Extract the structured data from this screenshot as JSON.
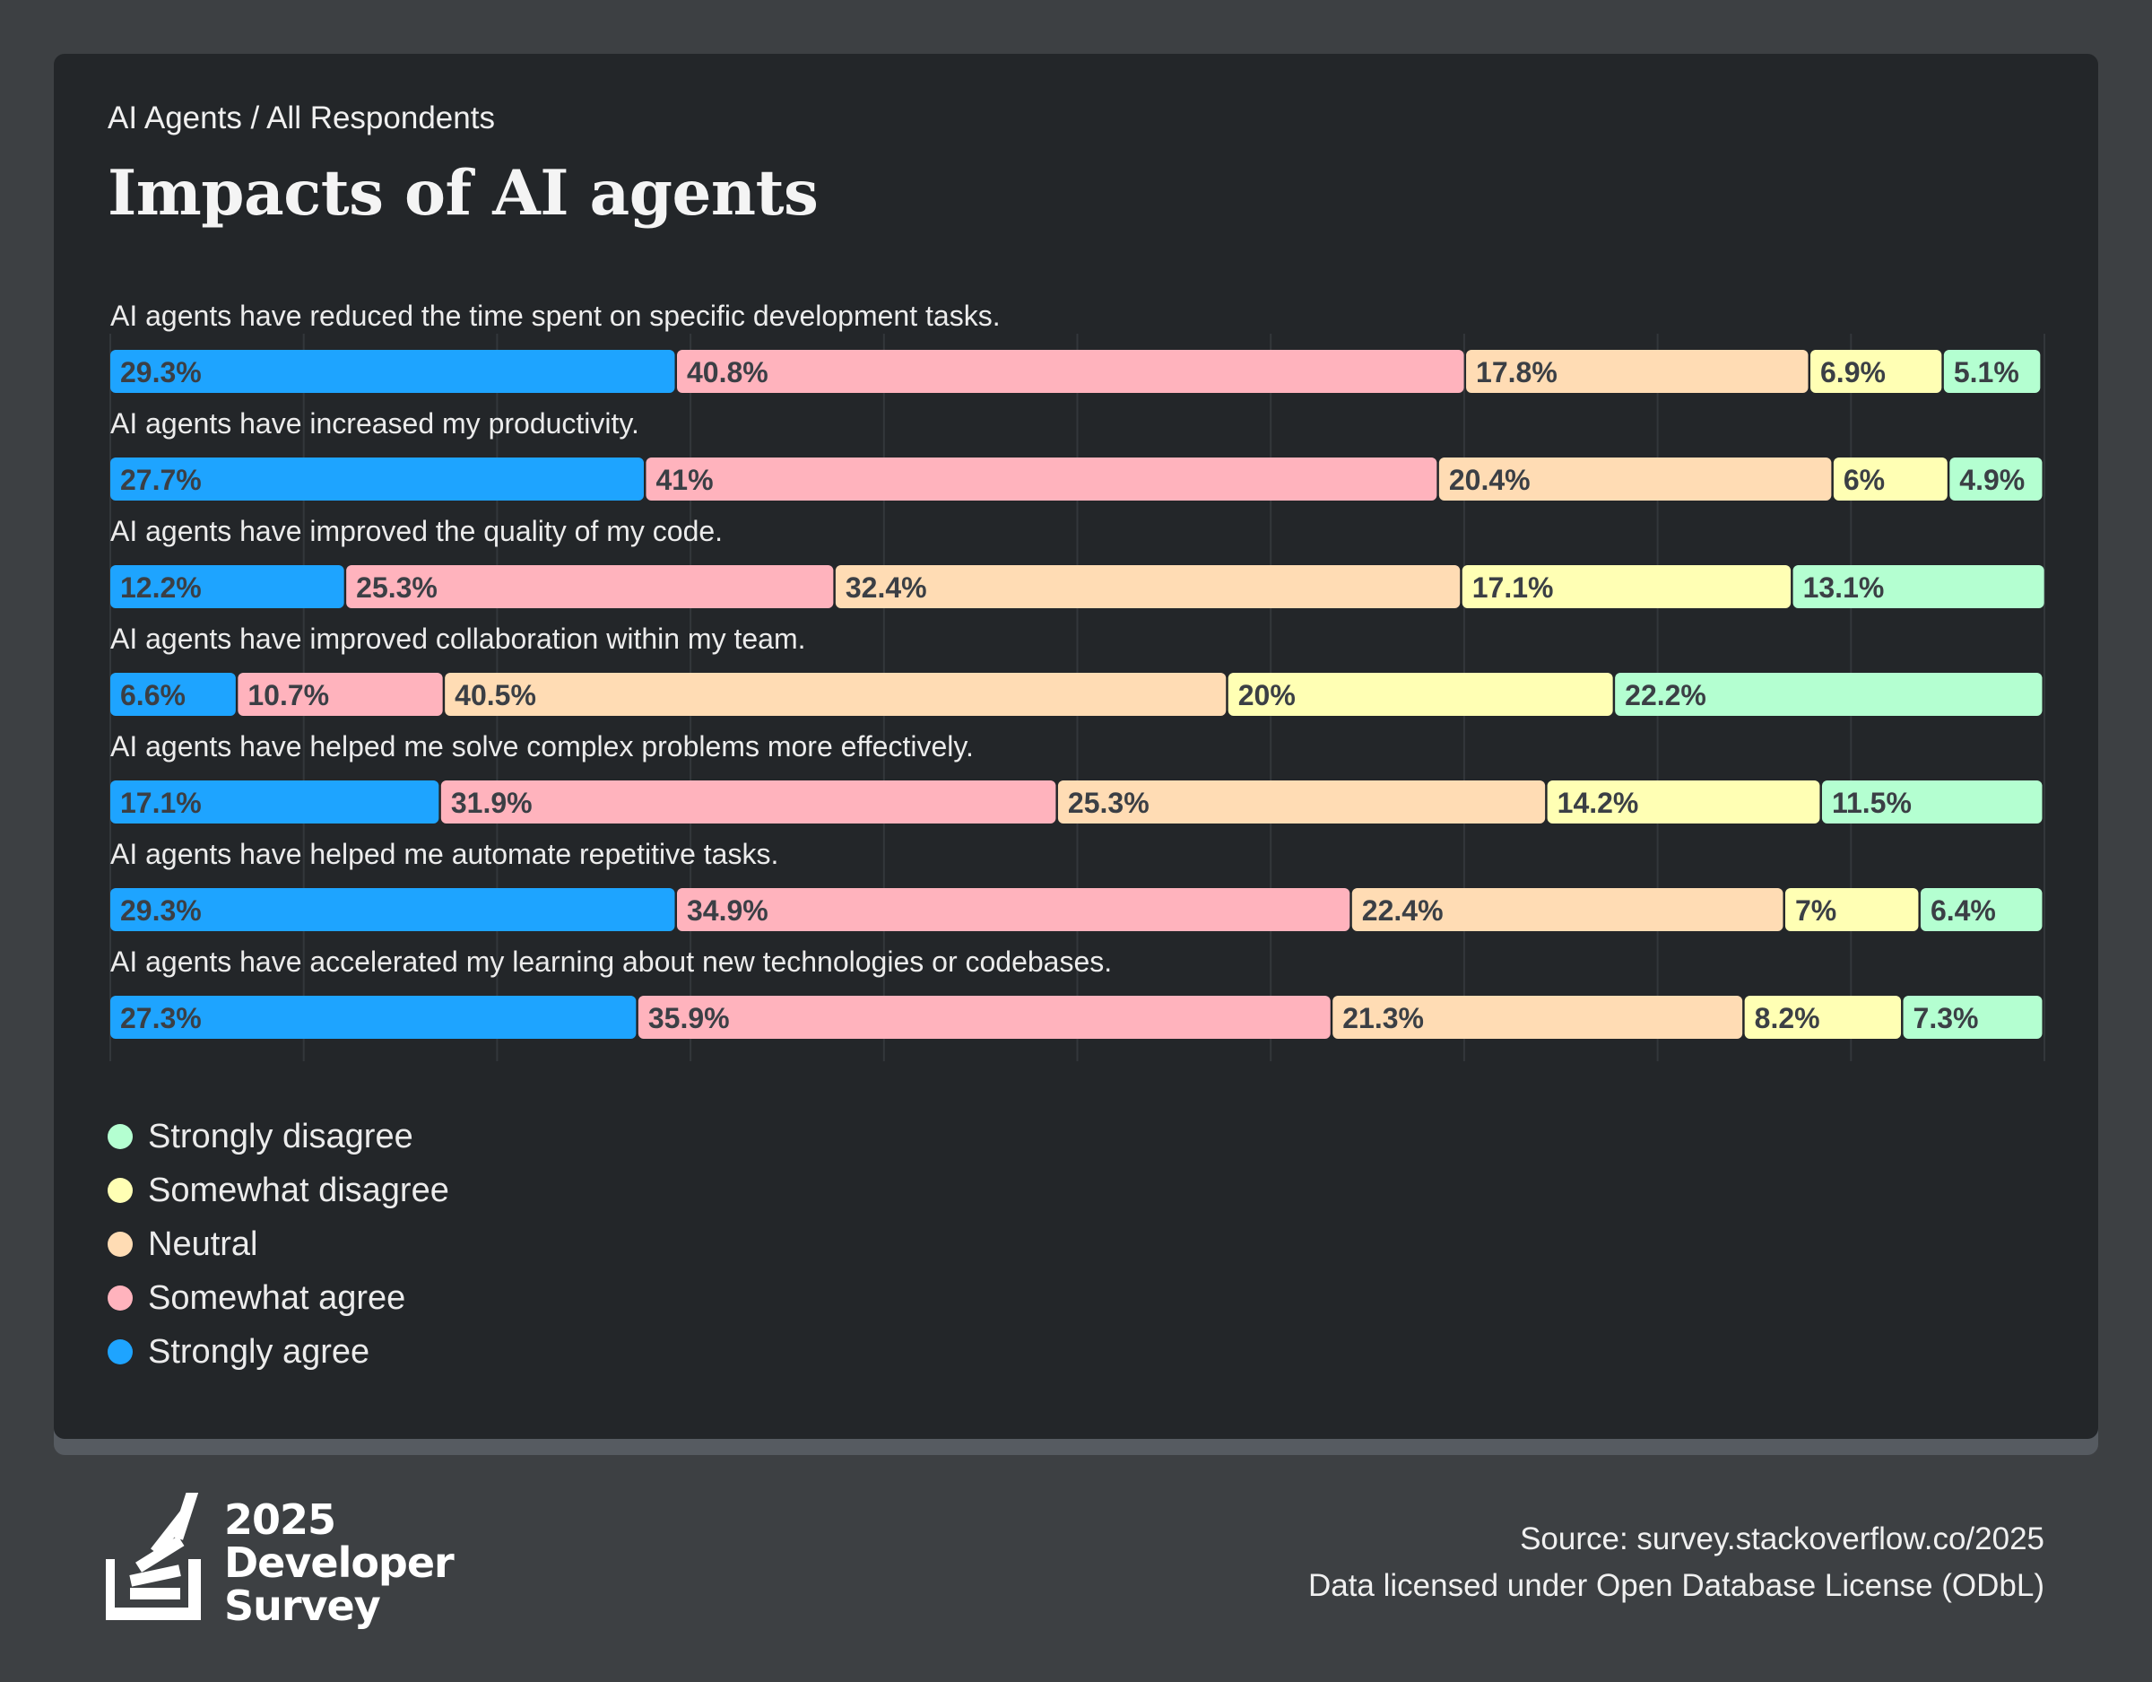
{
  "header": {
    "breadcrumb": "AI Agents / All Respondents",
    "title": "Impacts of AI agents"
  },
  "chart_data": {
    "type": "bar",
    "orientation": "horizontal",
    "stacked": true,
    "grid": true,
    "xlim": [
      0,
      100
    ],
    "legend_position": "bottom-left",
    "categories": [
      "AI agents have reduced the time spent on specific development tasks.",
      "AI agents have increased my productivity.",
      "AI agents have improved the quality of my code.",
      "AI agents have improved collaboration within my team.",
      "AI agents have helped me solve complex problems more effectively.",
      "AI agents have helped me automate repetitive tasks.",
      "AI agents have accelerated my learning about new technologies or codebases."
    ],
    "series": [
      {
        "name": "Strongly agree",
        "color": "#1ea4ff",
        "values": [
          29.3,
          27.7,
          12.2,
          6.6,
          17.1,
          29.3,
          27.3
        ]
      },
      {
        "name": "Somewhat agree",
        "color": "#ffb3bd",
        "values": [
          40.8,
          41,
          25.3,
          10.7,
          31.9,
          34.9,
          35.9
        ]
      },
      {
        "name": "Neutral",
        "color": "#ffdcb4",
        "values": [
          17.8,
          20.4,
          32.4,
          40.5,
          25.3,
          22.4,
          21.3
        ]
      },
      {
        "name": "Somewhat disagree",
        "color": "#ffffb4",
        "values": [
          6.9,
          6,
          17.1,
          20,
          14.2,
          7,
          8.2
        ]
      },
      {
        "name": "Strongly disagree",
        "color": "#b4ffd1",
        "values": [
          5.1,
          4.9,
          13.1,
          22.2,
          11.5,
          6.4,
          7.3
        ]
      }
    ],
    "value_labels": [
      [
        "29.3%",
        "40.8%",
        "17.8%",
        "6.9%",
        "5.1%"
      ],
      [
        "27.7%",
        "41%",
        "20.4%",
        "6%",
        "4.9%"
      ],
      [
        "12.2%",
        "25.3%",
        "32.4%",
        "17.1%",
        "13.1%"
      ],
      [
        "6.6%",
        "10.7%",
        "40.5%",
        "20%",
        "22.2%"
      ],
      [
        "17.1%",
        "31.9%",
        "25.3%",
        "14.2%",
        "11.5%"
      ],
      [
        "29.3%",
        "34.9%",
        "22.4%",
        "7%",
        "6.4%"
      ],
      [
        "27.3%",
        "35.9%",
        "21.3%",
        "8.2%",
        "7.3%"
      ]
    ]
  },
  "legend": {
    "items": [
      {
        "label": "Strongly disagree",
        "color": "#b4ffd1"
      },
      {
        "label": "Somewhat disagree",
        "color": "#ffffb4"
      },
      {
        "label": "Neutral",
        "color": "#ffdcb4"
      },
      {
        "label": "Somewhat agree",
        "color": "#ffb3bd"
      },
      {
        "label": "Strongly agree",
        "color": "#1ea4ff"
      }
    ]
  },
  "footer": {
    "logo": {
      "line1": "2025",
      "line2": "Developer",
      "line3": "Survey",
      "icon": "stack-overflow-logo-icon"
    },
    "source": "Source: survey.stackoverflow.co/2025",
    "license": "Data licensed under Open Database License (ODbL)"
  }
}
